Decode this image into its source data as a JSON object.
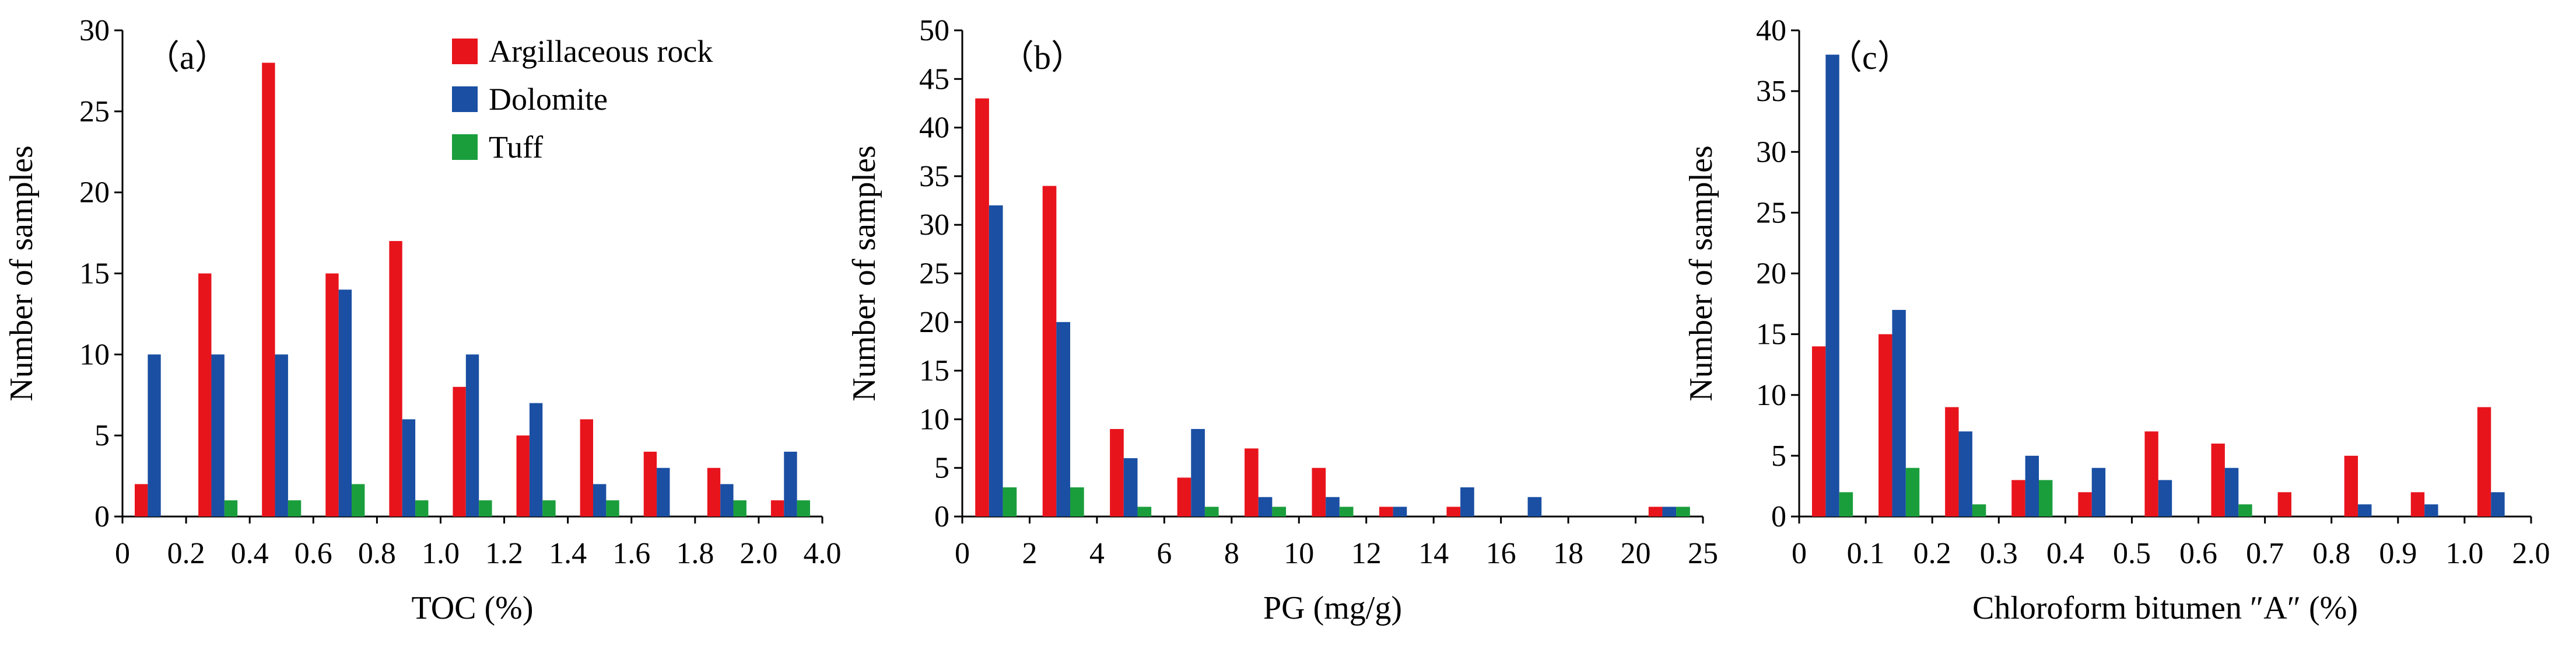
{
  "legend": [
    {
      "name": "Argillaceous rock",
      "color": "#e8141c"
    },
    {
      "name": "Dolomite",
      "color": "#1a4fa3"
    },
    {
      "name": "Tuff",
      "color": "#1a9e3c"
    }
  ],
  "chart_data": [
    {
      "type": "bar",
      "panel_label": "（a）",
      "xlabel": "TOC (%)",
      "ylabel": "Number of samples",
      "ylim": [
        0,
        30
      ],
      "yticks": [
        "0",
        "5",
        "10",
        "15",
        "20",
        "25",
        "30"
      ],
      "xtick_labels": [
        "0",
        "0.2",
        "0.4",
        "0.6",
        "0.8",
        "1.0",
        "1.2",
        "1.4",
        "1.6",
        "1.8",
        "2.0",
        "4.0"
      ],
      "bin_count": 11,
      "series": [
        {
          "name": "Argillaceous rock",
          "values": [
            2,
            15,
            28,
            15,
            17,
            8,
            5,
            6,
            4,
            3,
            1
          ]
        },
        {
          "name": "Dolomite",
          "values": [
            10,
            10,
            10,
            14,
            6,
            10,
            7,
            2,
            3,
            2,
            4
          ]
        },
        {
          "name": "Tuff",
          "values": [
            0,
            1,
            1,
            2,
            1,
            1,
            1,
            1,
            0,
            1,
            1
          ]
        }
      ]
    },
    {
      "type": "bar",
      "panel_label": "（b）",
      "xlabel": "PG (mg/g)",
      "ylabel": "Number of samples",
      "ylim": [
        0,
        50
      ],
      "yticks": [
        "0",
        "5",
        "10",
        "15",
        "20",
        "25",
        "30",
        "35",
        "40",
        "45",
        "50"
      ],
      "xtick_labels": [
        "0",
        "2",
        "4",
        "6",
        "8",
        "10",
        "12",
        "14",
        "16",
        "18",
        "20",
        "25"
      ],
      "bin_count": 11,
      "series": [
        {
          "name": "Argillaceous rock",
          "values": [
            43,
            34,
            9,
            4,
            7,
            5,
            1,
            1,
            0,
            0,
            1
          ]
        },
        {
          "name": "Dolomite",
          "values": [
            32,
            20,
            6,
            9,
            2,
            2,
            1,
            3,
            2,
            0,
            1
          ]
        },
        {
          "name": "Tuff",
          "values": [
            3,
            3,
            1,
            1,
            1,
            1,
            0,
            0,
            0,
            0,
            1
          ]
        }
      ]
    },
    {
      "type": "bar",
      "panel_label": "（c）",
      "xlabel": "Chloroform bitumen ″A″ (%)",
      "ylabel": "Number of samples",
      "ylim": [
        0,
        40
      ],
      "yticks": [
        "0",
        "5",
        "10",
        "15",
        "20",
        "25",
        "30",
        "35",
        "40"
      ],
      "xtick_labels": [
        "0",
        "0.1",
        "0.2",
        "0.3",
        "0.4",
        "0.5",
        "0.6",
        "0.7",
        "0.8",
        "0.9",
        "1.0",
        "2.0"
      ],
      "bin_count": 11,
      "series": [
        {
          "name": "Argillaceous rock",
          "values": [
            14,
            15,
            9,
            3,
            2,
            7,
            6,
            2,
            5,
            2,
            9
          ]
        },
        {
          "name": "Dolomite",
          "values": [
            38,
            17,
            7,
            5,
            4,
            3,
            4,
            0,
            1,
            1,
            2
          ]
        },
        {
          "name": "Tuff",
          "values": [
            2,
            4,
            1,
            3,
            0,
            0,
            1,
            0,
            0,
            0,
            0
          ]
        }
      ]
    }
  ]
}
